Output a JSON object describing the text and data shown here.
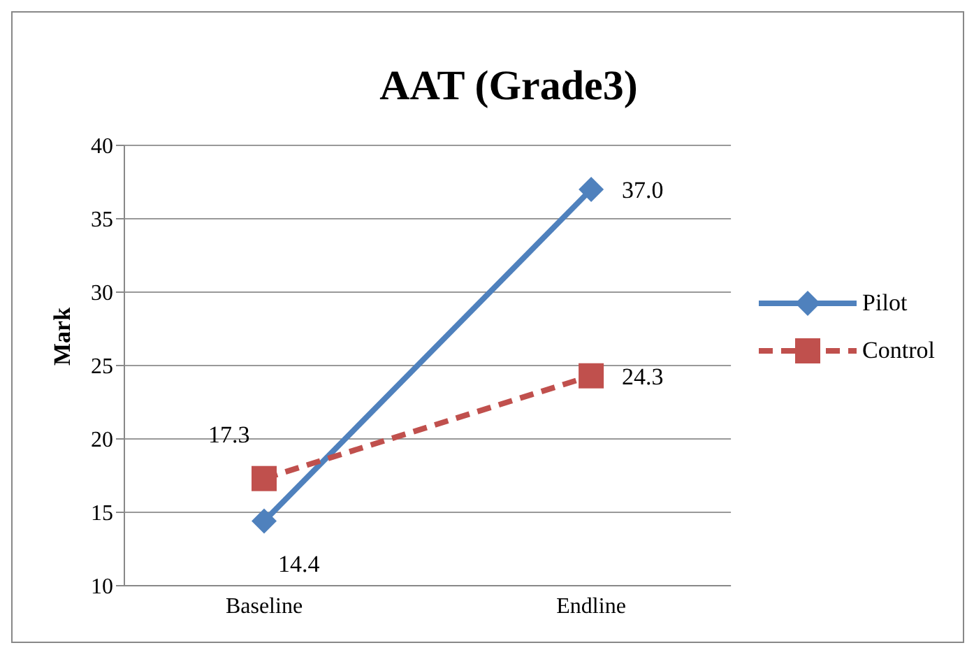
{
  "chart_data": {
    "type": "line",
    "title": "AAT (Grade3)",
    "ylabel": "Mark",
    "categories": [
      "Baseline",
      "Endline"
    ],
    "series": [
      {
        "name": "Pilot",
        "color": "#4f81bd",
        "values": [
          14.4,
          37.0
        ],
        "value_labels": [
          "14.4",
          "37.0"
        ],
        "marker": "diamond",
        "line_style": "solid"
      },
      {
        "name": "Control",
        "color": "#c0504d",
        "values": [
          17.3,
          24.3
        ],
        "value_labels": [
          "17.3",
          "24.3"
        ],
        "marker": "square",
        "line_style": "dashed"
      }
    ],
    "ylim": [
      10,
      40
    ],
    "yticks": [
      10,
      15,
      20,
      25,
      30,
      35,
      40
    ],
    "grid": "y",
    "legend": "right"
  }
}
